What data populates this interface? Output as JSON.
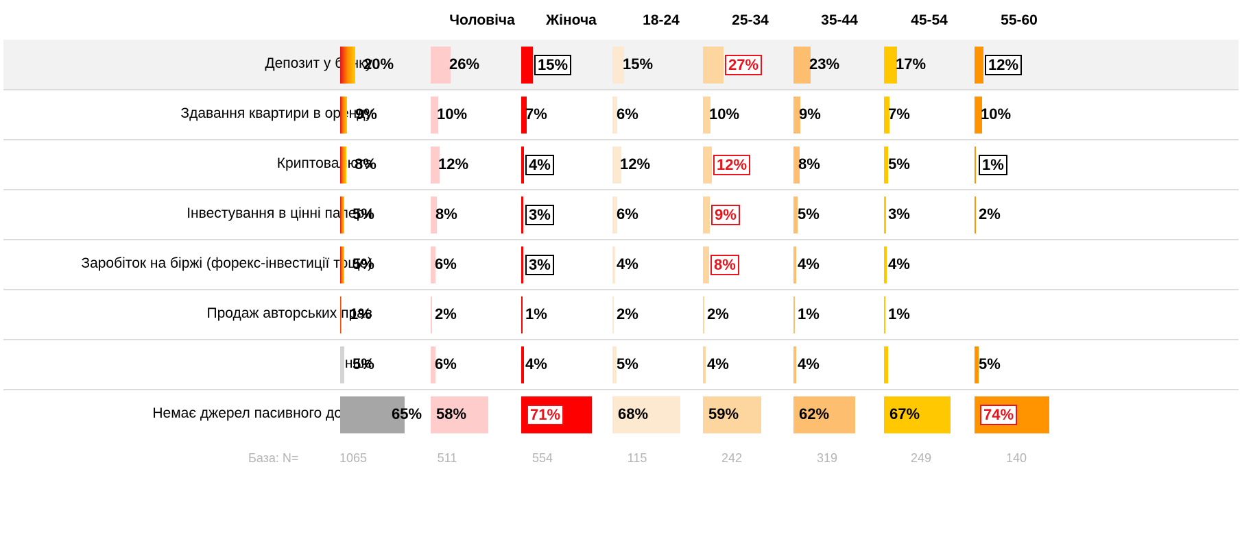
{
  "chart_data": {
    "type": "table",
    "columns": [
      "",
      "Чоловіча",
      "Жіноча",
      "18-24",
      "25-34",
      "35-44",
      "45-54",
      "55-60"
    ],
    "rows": [
      {
        "label": "Депозит у банку",
        "values": [
          20,
          26,
          15,
          15,
          27,
          23,
          17,
          12
        ],
        "display": [
          "20%",
          "26%",
          "15%",
          "15%",
          "27%",
          "23%",
          "17%",
          "12%"
        ],
        "highlight": [
          "",
          "",
          "black",
          "",
          "red",
          "",
          "",
          "black"
        ]
      },
      {
        "label": "Здавання квартири в оренду",
        "values": [
          9,
          10,
          7,
          6,
          10,
          9,
          7,
          10
        ],
        "display": [
          "9%",
          "10%",
          "7%",
          "6%",
          "10%",
          "9%",
          "7%",
          "10%"
        ],
        "highlight": [
          "",
          "",
          "",
          "",
          "",
          "",
          "",
          ""
        ]
      },
      {
        "label": "Криптовалюта",
        "values": [
          8,
          12,
          4,
          12,
          12,
          8,
          5,
          1
        ],
        "display": [
          "8%",
          "12%",
          "4%",
          "12%",
          "12%",
          "8%",
          "5%",
          "1%"
        ],
        "highlight": [
          "",
          "",
          "black",
          "",
          "red",
          "",
          "",
          "black"
        ]
      },
      {
        "label": "Інвестування в цінні папери",
        "values": [
          5,
          8,
          3,
          6,
          9,
          5,
          3,
          2
        ],
        "display": [
          "5%",
          "8%",
          "3%",
          "6%",
          "9%",
          "5%",
          "3%",
          "2%"
        ],
        "highlight": [
          "",
          "",
          "black",
          "",
          "red",
          "",
          "",
          ""
        ]
      },
      {
        "label": "Заробіток на біржі (форекс-інвестиції тощо)",
        "values": [
          5,
          6,
          3,
          4,
          8,
          4,
          4,
          null
        ],
        "display": [
          "5%",
          "6%",
          "3%",
          "4%",
          "8%",
          "4%",
          "4%",
          ""
        ],
        "highlight": [
          "",
          "",
          "black",
          "",
          "red",
          "",
          "",
          ""
        ]
      },
      {
        "label": "Продаж авторських прав",
        "values": [
          1,
          2,
          1,
          2,
          2,
          1,
          1,
          null
        ],
        "display": [
          "1%",
          "2%",
          "1%",
          "2%",
          "2%",
          "1%",
          "1%",
          ""
        ],
        "highlight": [
          "",
          "",
          "",
          "",
          "",
          "",
          "",
          ""
        ]
      },
      {
        "label": "Інше",
        "values": [
          5,
          6,
          4,
          5,
          4,
          4,
          5,
          5
        ],
        "display": [
          "5%",
          "6%",
          "4%",
          "5%",
          "4%",
          "4%",
          "",
          "5%"
        ],
        "highlight": [
          "",
          "",
          "",
          "",
          "",
          "",
          "",
          ""
        ]
      },
      {
        "label": "Немає джерел пасивного доходу",
        "values": [
          65,
          58,
          71,
          68,
          59,
          62,
          67,
          74
        ],
        "display": [
          "65%",
          "58%",
          "71%",
          "68%",
          "59%",
          "62%",
          "67%",
          "74%"
        ],
        "highlight": [
          "",
          "",
          "red",
          "",
          "",
          "",
          "",
          "red"
        ]
      }
    ],
    "base": {
      "label": "База: N=",
      "values": [
        "1065",
        "511",
        "554",
        "115",
        "242",
        "319",
        "249",
        "140"
      ]
    },
    "colors": {
      "col0_gradient": [
        "#e8141b",
        "#ff8c00",
        "#ffcc00"
      ],
      "col0_other": "#d3d3d3",
      "col0_none": "#a6a6a6",
      "columns": [
        "#ffcccc",
        "#ff0000",
        "#fde9cf",
        "#fdd59f",
        "#fdbf6f",
        "#ffc800",
        "#ff9400"
      ],
      "highlight_band": "#f2f2f2",
      "highlight_red": "#e8141b"
    },
    "grid": false,
    "legend": "none"
  }
}
